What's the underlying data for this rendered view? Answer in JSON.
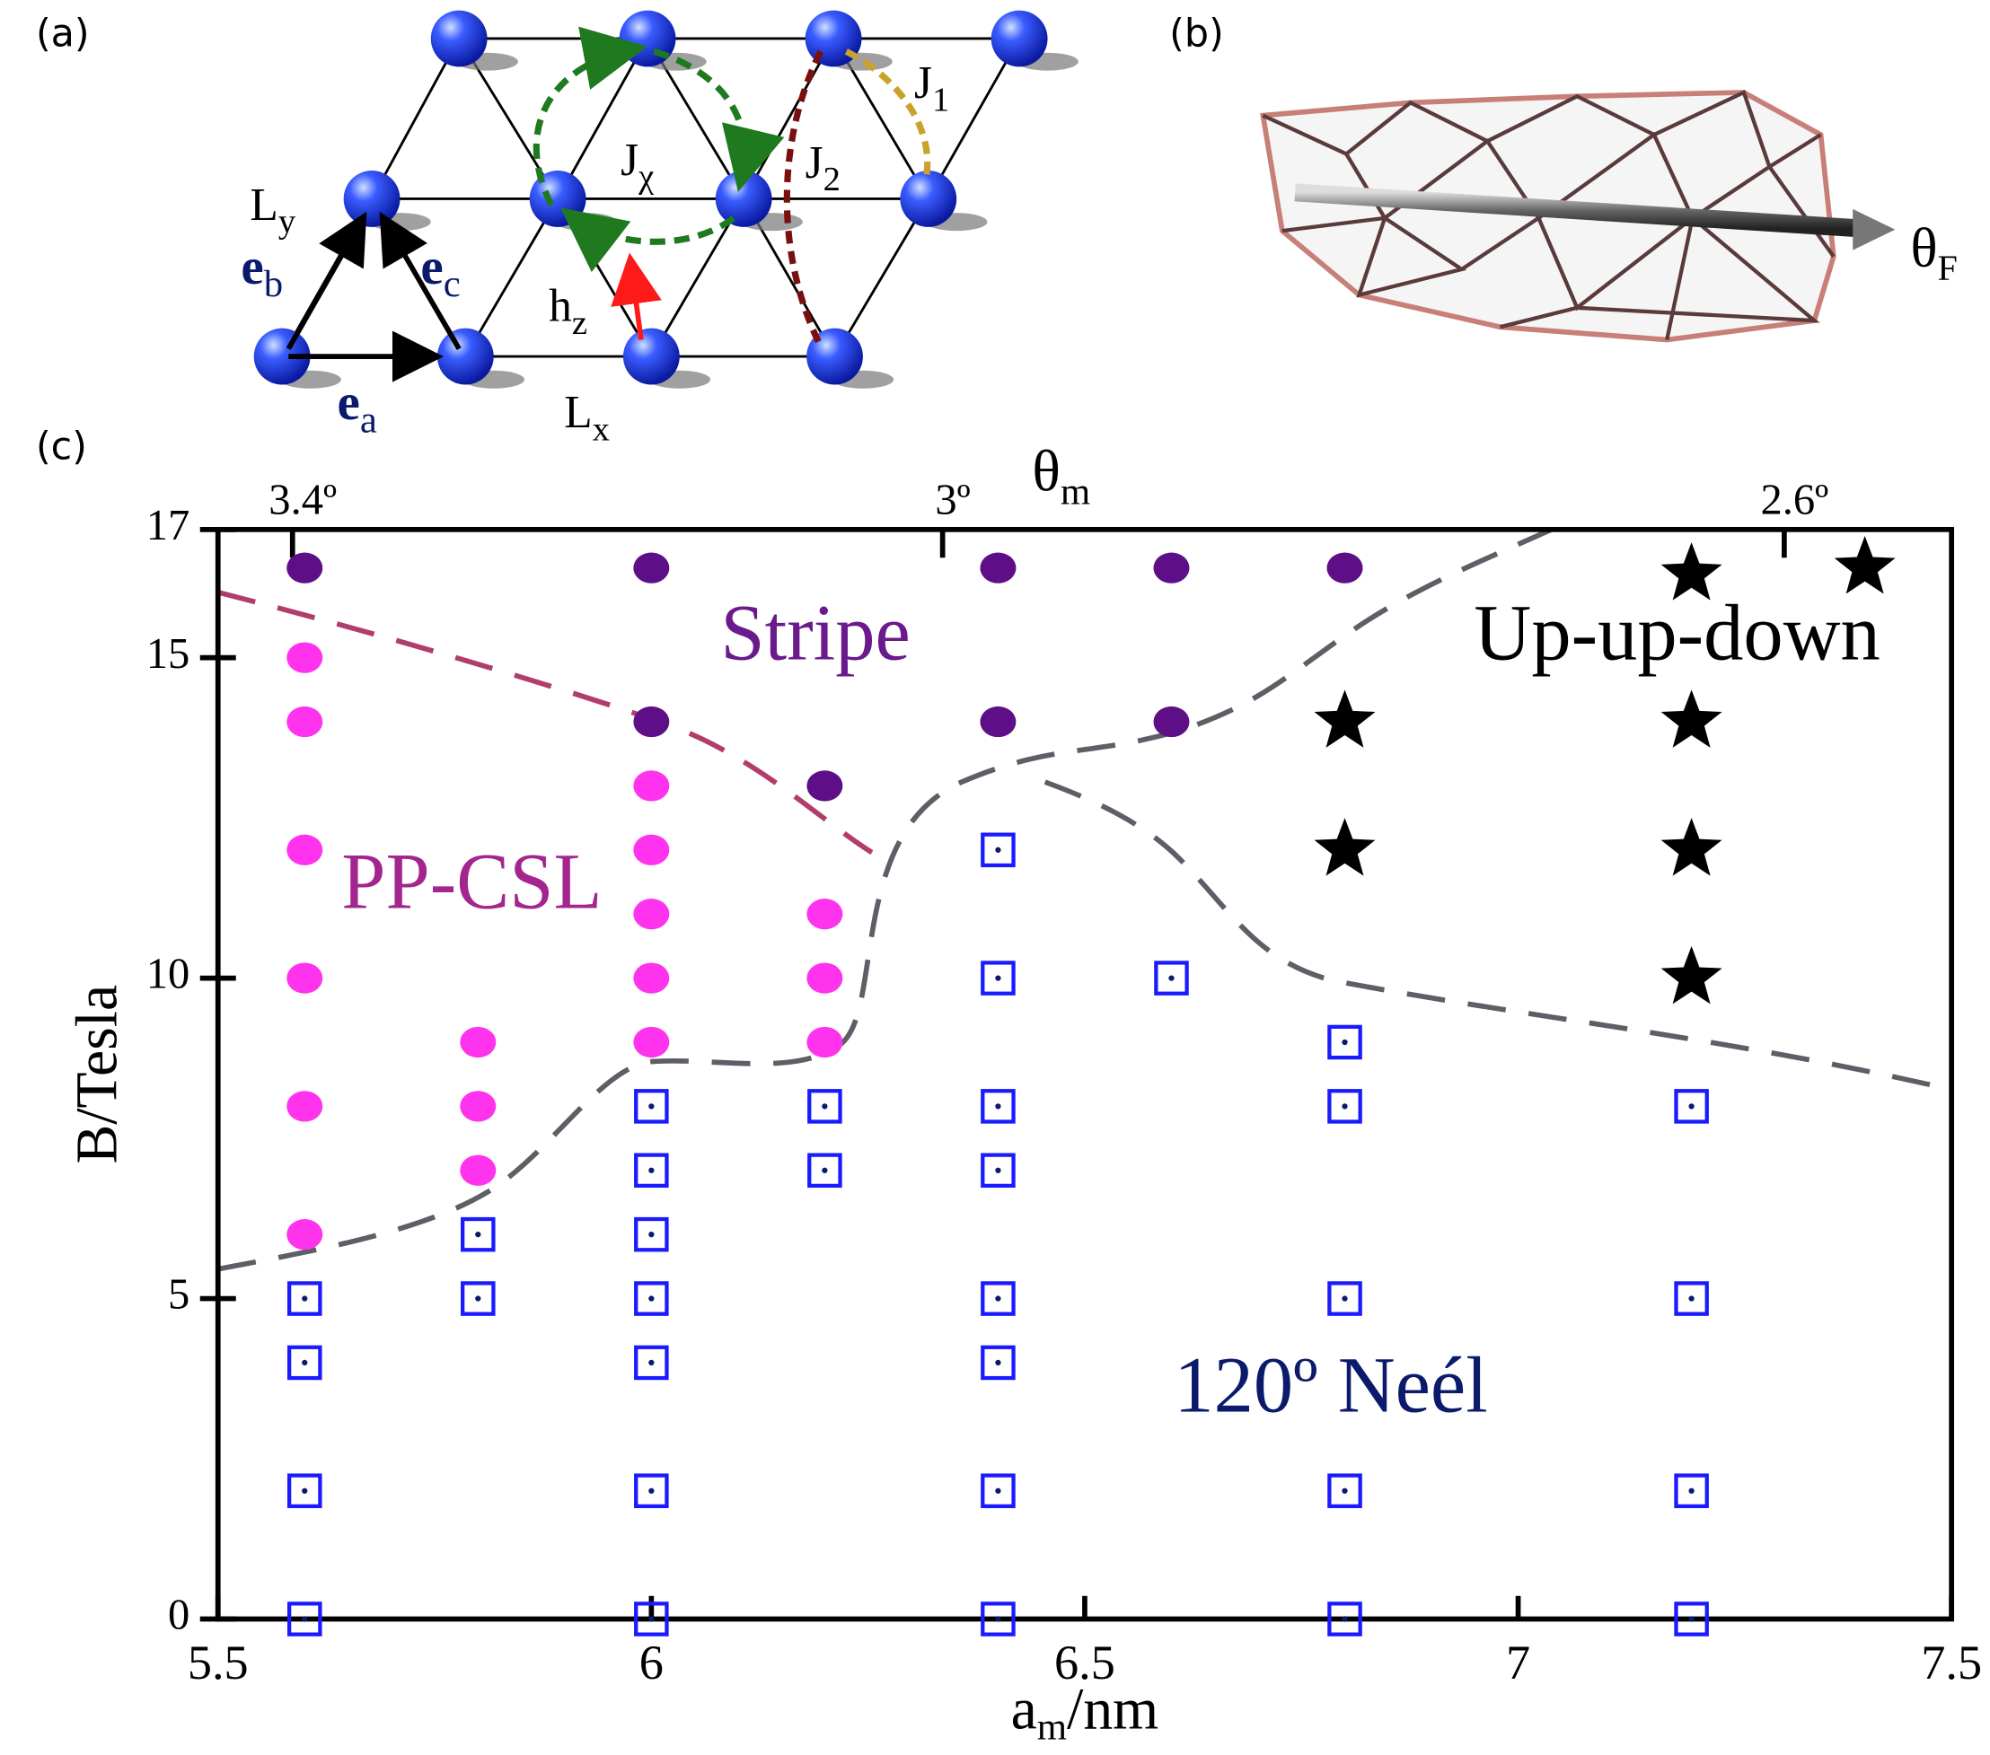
{
  "panels": {
    "a": {
      "tag": "(a)",
      "labels": [
        {
          "text": "L",
          "sub": "y"
        },
        {
          "text": "e",
          "sub": "b"
        },
        {
          "text": "e",
          "sub": "c"
        },
        {
          "text": "e",
          "sub": "a"
        },
        {
          "text": "L",
          "sub": "x"
        },
        {
          "text": "h",
          "sub": "z"
        },
        {
          "text": "J",
          "sub": "χ"
        },
        {
          "text": "J",
          "sub": "2"
        },
        {
          "text": "J",
          "sub": "1"
        }
      ]
    },
    "b": {
      "tag": "(b)",
      "label": {
        "text": "θ",
        "sub": "F"
      }
    },
    "c": {
      "tag": "(c)"
    }
  },
  "chart_data": {
    "type": "scatter",
    "xlabel": {
      "text": "a",
      "sub": "m",
      "rest": "/nm"
    },
    "ylabel": "B/Tesla",
    "x2label": {
      "text": "θ",
      "sub": "m"
    },
    "xlim": [
      5.5,
      7.5
    ],
    "xticks": [
      5.5,
      6,
      6.5,
      7,
      7.5
    ],
    "ylim": [
      0,
      17
    ],
    "yticks": [
      0,
      5,
      10,
      15,
      17
    ],
    "x2ticks": [
      {
        "value": 5.586,
        "label": "3.4º"
      },
      {
        "value": 6.336,
        "label": "3º"
      },
      {
        "value": 7.307,
        "label": "2.6º"
      }
    ],
    "annotations": [
      {
        "text": "Stripe",
        "color": "#6a1a8c"
      },
      {
        "text": "Up-up-down",
        "color": "#000000"
      },
      {
        "text": "PP-CSL",
        "color": "#a3268f"
      },
      {
        "text": "120º Neél",
        "color": "#0b1a6b"
      }
    ],
    "series": [
      {
        "name": "PP-CSL",
        "marker": "circle",
        "color": "#ff33ee",
        "x": [
          5.6,
          5.6,
          5.6,
          5.6,
          5.6,
          5.6,
          5.8,
          5.8,
          5.8,
          6.0,
          6.0,
          6.0,
          6.0,
          6.0,
          6.2,
          6.2,
          6.2
        ],
        "values": [
          15,
          14,
          12,
          10,
          8,
          6,
          9,
          8,
          7,
          13,
          12,
          11,
          10,
          9,
          11,
          10,
          9
        ]
      },
      {
        "name": "Stripe",
        "marker": "circle",
        "color": "#5e0f87",
        "x": [
          5.6,
          6.0,
          6.0,
          6.2,
          6.4,
          6.4,
          6.6,
          6.6,
          6.8
        ],
        "values": [
          16.4,
          16.4,
          14,
          13,
          16.4,
          14,
          16.4,
          14,
          16.4
        ]
      },
      {
        "name": "Up-up-down",
        "marker": "star",
        "color": "#000000",
        "x": [
          6.8,
          6.8,
          7.2,
          7.2,
          7.2,
          7.2,
          7.4
        ],
        "values": [
          14,
          12,
          16.3,
          14,
          12,
          10,
          16.4
        ]
      },
      {
        "name": "120º Neél",
        "marker": "square",
        "color": "#1a1aff",
        "x": [
          5.6,
          5.6,
          5.6,
          5.6,
          5.8,
          5.8,
          6.0,
          6.0,
          6.0,
          6.0,
          6.0,
          6.0,
          6.0,
          6.2,
          6.2,
          6.4,
          6.4,
          6.4,
          6.4,
          6.4,
          6.4,
          6.4,
          6.4,
          6.6,
          6.8,
          6.8,
          6.8,
          6.8,
          6.8,
          7.2,
          7.2,
          7.2,
          7.2
        ],
        "values": [
          0,
          2,
          4,
          5,
          5,
          6,
          0,
          2,
          4,
          5,
          6,
          7,
          8,
          7,
          8,
          0,
          2,
          4,
          5,
          7,
          8,
          10,
          12,
          10,
          0,
          2,
          5,
          8,
          9,
          0,
          2,
          5,
          8
        ]
      }
    ]
  }
}
